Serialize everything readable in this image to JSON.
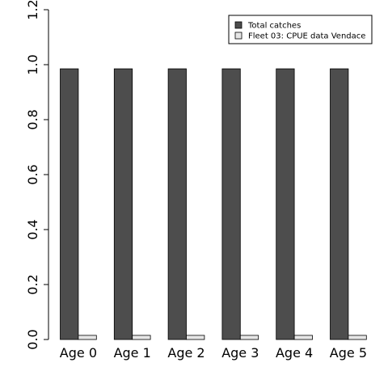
{
  "chart_data": {
    "type": "bar",
    "categories": [
      "Age 0",
      "Age 1",
      "Age 2",
      "Age 3",
      "Age 4",
      "Age 5"
    ],
    "series": [
      {
        "name": "Total catches",
        "values": [
          0.985,
          0.985,
          0.985,
          0.985,
          0.985,
          0.985
        ],
        "color": "#4d4d4d"
      },
      {
        "name": "Fleet 03:  CPUE data Vendace",
        "values": [
          0.015,
          0.015,
          0.015,
          0.015,
          0.015,
          0.015
        ],
        "color": "#e6e6e6"
      }
    ],
    "y_ticks": [
      "0.0",
      "0.2",
      "0.4",
      "0.6",
      "0.8",
      "1.0",
      "1.2"
    ],
    "ylim": [
      0,
      1.2
    ],
    "legend_position": "top-right",
    "grid": false,
    "title": "",
    "xlabel": "",
    "ylabel": ""
  }
}
